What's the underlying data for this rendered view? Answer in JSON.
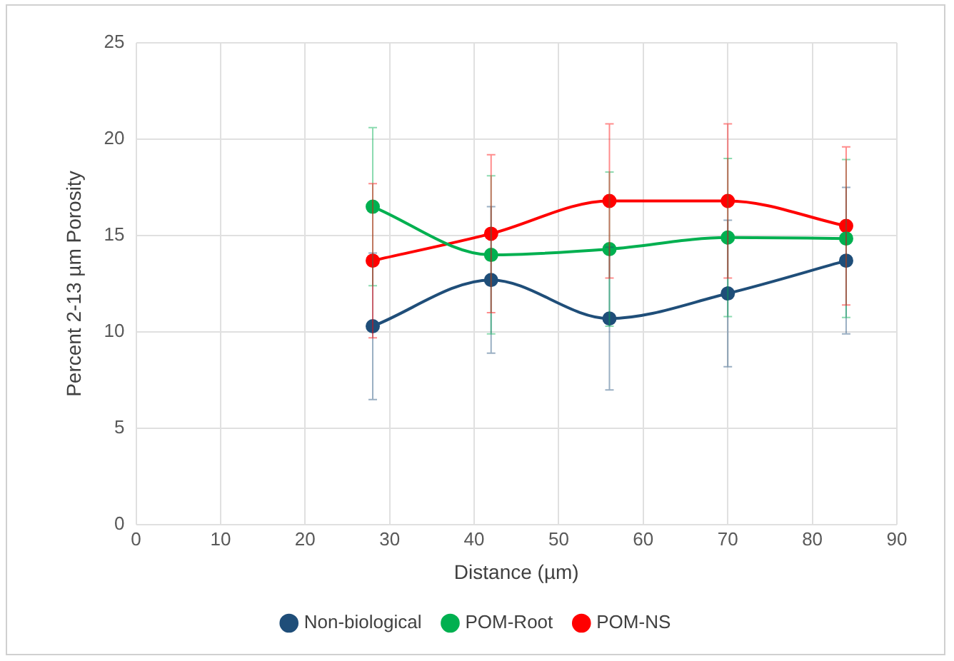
{
  "chart_data": {
    "type": "line",
    "xlabel": "Distance (µm)",
    "ylabel": "Percent 2-13 µm Porosity",
    "x": [
      28,
      42,
      56,
      70,
      84
    ],
    "xlim": [
      0,
      90
    ],
    "xticks": [
      0,
      10,
      20,
      30,
      40,
      50,
      60,
      70,
      80,
      90
    ],
    "ylim": [
      0,
      25
    ],
    "yticks": [
      0,
      5,
      10,
      15,
      20,
      25
    ],
    "grid": true,
    "legend": "bottom",
    "marker": "circle",
    "line_style": "solid",
    "series": [
      {
        "name": "Non-biological",
        "color": "#1f4e79",
        "values": [
          10.3,
          12.7,
          10.7,
          12.0,
          13.7
        ],
        "errors": [
          3.8,
          3.8,
          3.7,
          3.8,
          3.8
        ]
      },
      {
        "name": "POM-Root",
        "color": "#00b050",
        "values": [
          16.5,
          14.0,
          14.3,
          14.9,
          14.85
        ],
        "errors": [
          4.1,
          4.1,
          4.0,
          4.1,
          4.1
        ]
      },
      {
        "name": "POM-NS",
        "color": "#ff0000",
        "values": [
          13.7,
          15.1,
          16.8,
          16.8,
          15.5
        ],
        "errors": [
          4.0,
          4.1,
          4.0,
          4.0,
          4.1
        ]
      }
    ]
  }
}
